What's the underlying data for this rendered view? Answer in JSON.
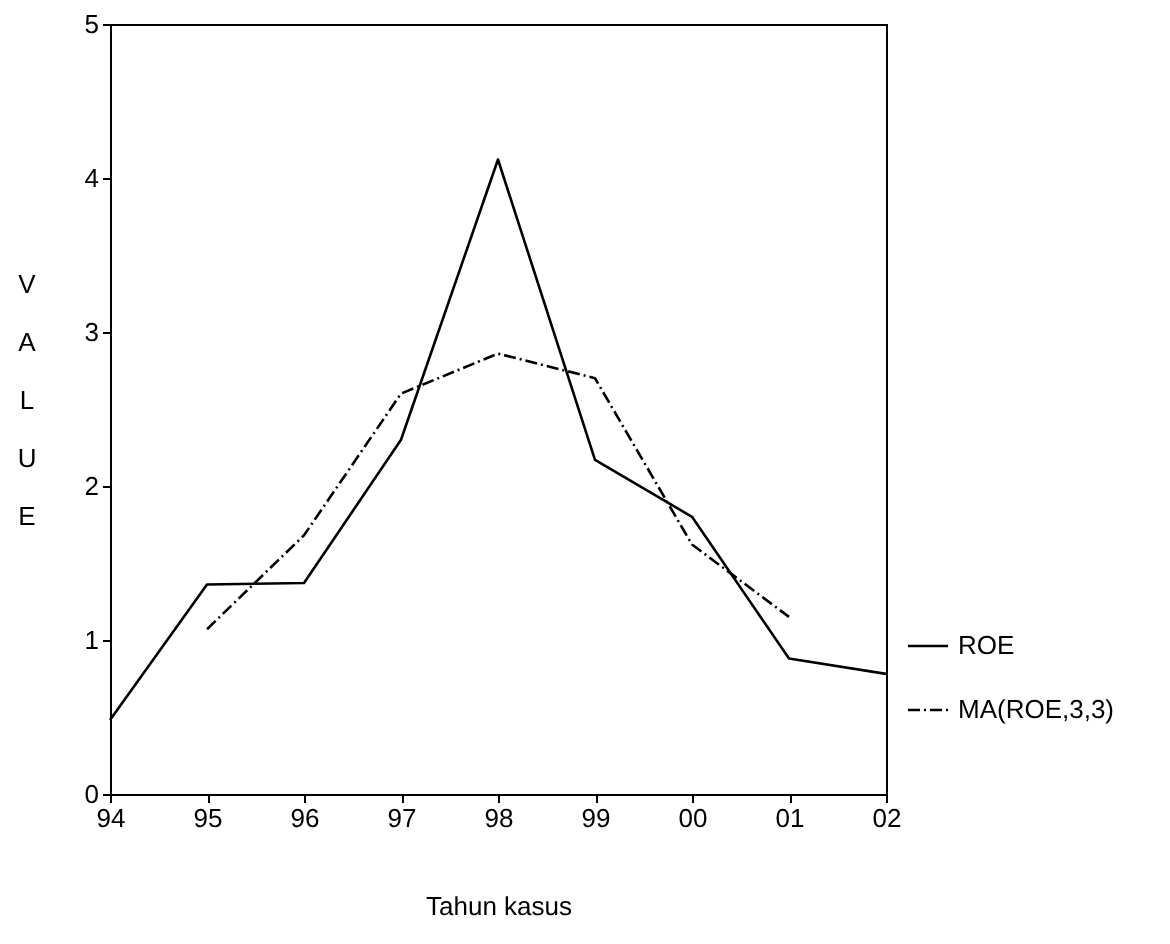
{
  "chart_data": {
    "type": "line",
    "xlabel": "Tahun kasus",
    "ylabel": "VALUE",
    "categories": [
      "94",
      "95",
      "96",
      "97",
      "98",
      "99",
      "00",
      "01",
      "02"
    ],
    "series": [
      {
        "name": "ROE",
        "color": "#000000",
        "line_style": "solid",
        "values": [
          0.48,
          1.36,
          1.37,
          2.3,
          4.12,
          2.17,
          1.8,
          0.88,
          0.78
        ]
      },
      {
        "name": "MA(ROE,3,3)",
        "color": "#000000",
        "line_style": "dashed",
        "values": [
          null,
          1.07,
          1.68,
          2.6,
          2.86,
          2.7,
          1.62,
          1.15,
          null
        ]
      }
    ],
    "ylim": [
      0,
      5
    ],
    "yticks": [
      0,
      1,
      2,
      3,
      4,
      5
    ],
    "grid": false,
    "legend": "right",
    "marker": "none"
  }
}
